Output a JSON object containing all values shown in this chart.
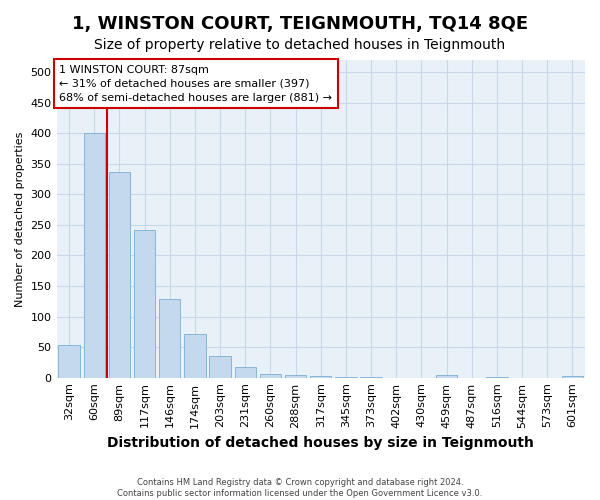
{
  "title": "1, WINSTON COURT, TEIGNMOUTH, TQ14 8QE",
  "subtitle": "Size of property relative to detached houses in Teignmouth",
  "xlabel": "Distribution of detached houses by size in Teignmouth",
  "ylabel": "Number of detached properties",
  "categories": [
    "32sqm",
    "60sqm",
    "89sqm",
    "117sqm",
    "146sqm",
    "174sqm",
    "203sqm",
    "231sqm",
    "260sqm",
    "288sqm",
    "317sqm",
    "345sqm",
    "373sqm",
    "402sqm",
    "430sqm",
    "459sqm",
    "487sqm",
    "516sqm",
    "544sqm",
    "573sqm",
    "601sqm"
  ],
  "values": [
    53,
    400,
    337,
    242,
    128,
    72,
    35,
    18,
    6,
    5,
    3,
    1,
    1,
    0,
    0,
    5,
    0,
    1,
    0,
    0,
    3
  ],
  "bar_color": "#c5d9ee",
  "bar_edge_color": "#7aafd4",
  "vline_x": 1.5,
  "vline_color": "#cc0000",
  "annotation_text": "1 WINSTON COURT: 87sqm\n← 31% of detached houses are smaller (397)\n68% of semi-detached houses are larger (881) →",
  "annotation_box_facecolor": "white",
  "annotation_box_edgecolor": "#cc0000",
  "fig_bg_color": "#ffffff",
  "plot_bg_color": "#e8f0f8",
  "grid_color": "#c8d8e8",
  "footnote": "Contains HM Land Registry data © Crown copyright and database right 2024.\nContains public sector information licensed under the Open Government Licence v3.0.",
  "ylim": [
    0,
    520
  ],
  "yticks": [
    0,
    50,
    100,
    150,
    200,
    250,
    300,
    350,
    400,
    450,
    500
  ],
  "title_fontsize": 13,
  "subtitle_fontsize": 10,
  "xlabel_fontsize": 10,
  "ylabel_fontsize": 8,
  "tick_fontsize": 8,
  "annot_fontsize": 8
}
